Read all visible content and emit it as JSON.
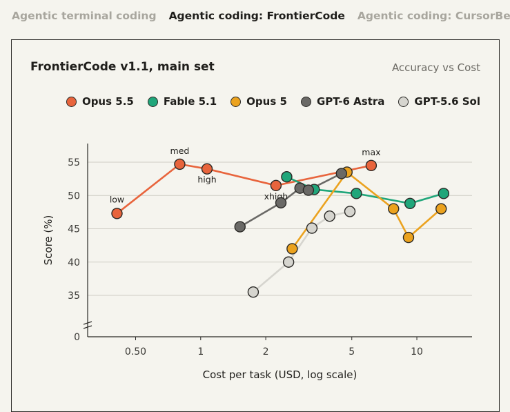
{
  "tabs": [
    {
      "label": "Agentic terminal coding",
      "active": false
    },
    {
      "label": "Agentic coding: FrontierCode",
      "active": true
    },
    {
      "label": "Agentic coding: CursorBench",
      "active": false
    }
  ],
  "card": {
    "title": "FrontierCode v1.1, main set",
    "subtitle": "Accuracy vs Cost"
  },
  "chart_data": {
    "type": "line",
    "xlabel": "Cost per task (USD, log scale)",
    "ylabel": "Score (%)",
    "x_scale": "log",
    "xlim": [
      0.3,
      18
    ],
    "ylim": [
      0,
      58
    ],
    "y_axis_break": true,
    "x_ticks": [
      {
        "value": 0.5,
        "label": "0.50"
      },
      {
        "value": 1,
        "label": "1"
      },
      {
        "value": 2,
        "label": "2"
      },
      {
        "value": 5,
        "label": "5"
      },
      {
        "value": 10,
        "label": "10"
      }
    ],
    "y_ticks": [
      0,
      35,
      40,
      45,
      50,
      55
    ],
    "grid": "horizontal",
    "legend_position": "top-right",
    "series": [
      {
        "name": "Opus 5.5",
        "color": "#e8643c",
        "points": [
          {
            "x": 0.41,
            "y": 47.3,
            "label": "low"
          },
          {
            "x": 0.8,
            "y": 54.7,
            "label": "med"
          },
          {
            "x": 1.07,
            "y": 54.0,
            "label": "high"
          },
          {
            "x": 2.23,
            "y": 51.5,
            "label": "xhigh"
          },
          {
            "x": 6.15,
            "y": 54.5,
            "label": "max"
          }
        ]
      },
      {
        "name": "Fable 5.1",
        "color": "#20a67a",
        "points": [
          {
            "x": 2.5,
            "y": 52.8
          },
          {
            "x": 3.35,
            "y": 50.9
          },
          {
            "x": 5.25,
            "y": 50.3
          },
          {
            "x": 9.3,
            "y": 48.8
          },
          {
            "x": 13.3,
            "y": 50.3
          }
        ]
      },
      {
        "name": "Opus 5",
        "color": "#eba21e",
        "points": [
          {
            "x": 2.65,
            "y": 42.0
          },
          {
            "x": 4.75,
            "y": 53.5
          },
          {
            "x": 7.8,
            "y": 48.0
          },
          {
            "x": 9.15,
            "y": 43.7
          },
          {
            "x": 12.95,
            "y": 48.0
          }
        ]
      },
      {
        "name": "GPT-6 Astra",
        "color": "#6a6966",
        "points": [
          {
            "x": 1.52,
            "y": 45.3
          },
          {
            "x": 2.35,
            "y": 48.9
          },
          {
            "x": 2.88,
            "y": 51.1
          },
          {
            "x": 3.15,
            "y": 50.8
          },
          {
            "x": 4.48,
            "y": 53.3
          }
        ]
      },
      {
        "name": "GPT-5.6 Sol",
        "color": "#d6d5cf",
        "points": [
          {
            "x": 1.75,
            "y": 35.5
          },
          {
            "x": 2.55,
            "y": 40.0
          },
          {
            "x": 3.27,
            "y": 45.1
          },
          {
            "x": 3.95,
            "y": 46.9
          },
          {
            "x": 4.9,
            "y": 47.6
          }
        ]
      }
    ]
  }
}
